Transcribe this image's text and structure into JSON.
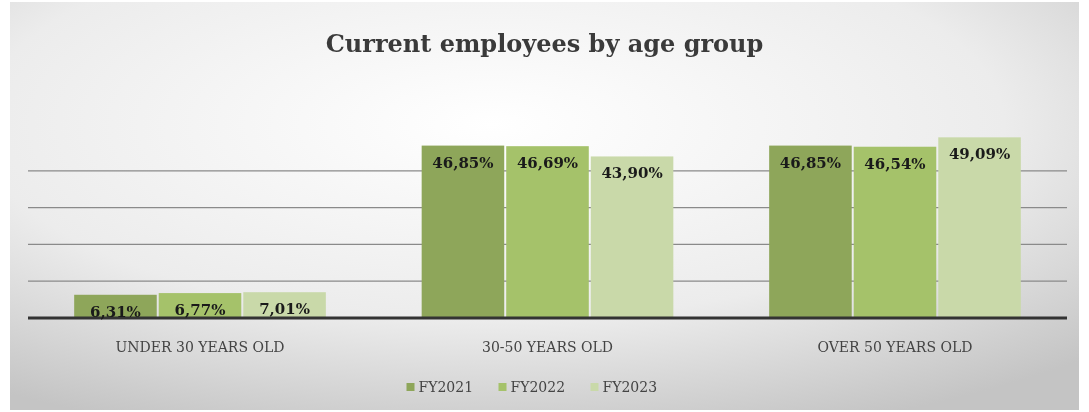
{
  "chart_data": {
    "type": "bar",
    "title": "Current employees by age group",
    "categories": [
      "UNDER 30 YEARS OLD",
      "30-50 YEARS OLD",
      "OVER 50 YEARS OLD"
    ],
    "series": [
      {
        "name": "FY2021",
        "color": "#8ea65a",
        "values": [
          6.31,
          46.85,
          46.85
        ],
        "value_labels": [
          "6,31%",
          "46,85%",
          "46,85%"
        ]
      },
      {
        "name": "FY2022",
        "color": "#a5c26a",
        "values": [
          6.77,
          46.69,
          46.54
        ],
        "value_labels": [
          "6,77%",
          "46,69%",
          "46,54%"
        ]
      },
      {
        "name": "FY2023",
        "color": "#c9d9a9",
        "values": [
          7.01,
          43.9,
          49.09
        ],
        "value_labels": [
          "7,01%",
          "43,90%",
          "49,09%"
        ]
      }
    ],
    "ylim": [
      0,
      50
    ],
    "yticks": [
      {
        "value": 0,
        "label": null
      },
      {
        "value": 10,
        "label": null
      },
      {
        "value": 20,
        "label": null
      },
      {
        "value": 30,
        "label": null
      },
      {
        "value": 40,
        "label": null
      }
    ],
    "tick_labels": "x",
    "grid": "y",
    "legend": "bottom"
  }
}
